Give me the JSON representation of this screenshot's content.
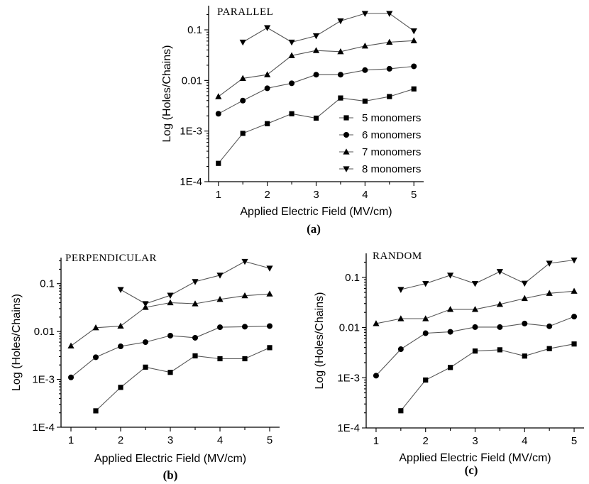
{
  "chart_data": [
    {
      "panel": "a",
      "type": "line",
      "title": "PARALLEL",
      "caption": "(a)",
      "xlabel": "Applied Electric Field (MV/cm)",
      "ylabel": "Log (Holes/Chains)",
      "yscale": "log",
      "xlim": [
        0.8,
        5.2
      ],
      "ylim": [
        0.0001,
        0.3
      ],
      "xticks": [
        1,
        1.5,
        2,
        2.5,
        3,
        3.5,
        4,
        4.5,
        5
      ],
      "xtick_labels": [
        "1",
        "",
        "2",
        "",
        "3",
        "",
        "4",
        "",
        "5"
      ],
      "yticks": [
        0.0001,
        0.001,
        0.01,
        0.1
      ],
      "ytick_labels": [
        "1E-4",
        "1E-3",
        "0.01",
        "0.1"
      ],
      "legend": "bottom-right",
      "series": [
        {
          "name": "5 monomers",
          "marker": "square",
          "x": [
            1,
            1.5,
            2,
            2.5,
            3,
            3.5,
            4,
            4.5,
            5
          ],
          "values": [
            0.00023,
            0.0009,
            0.0014,
            0.0022,
            0.0018,
            0.0045,
            0.0039,
            0.0048,
            0.0068
          ]
        },
        {
          "name": "6 monomers",
          "marker": "circle",
          "x": [
            1,
            1.5,
            2,
            2.5,
            3,
            3.5,
            4,
            4.5,
            5
          ],
          "values": [
            0.0022,
            0.004,
            0.007,
            0.0088,
            0.013,
            0.013,
            0.016,
            0.017,
            0.019
          ]
        },
        {
          "name": "7 monomers",
          "marker": "triangle-up",
          "x": [
            1,
            1.5,
            2,
            2.5,
            3,
            3.5,
            4,
            4.5,
            5
          ],
          "values": [
            0.0048,
            0.011,
            0.013,
            0.031,
            0.039,
            0.037,
            0.048,
            0.057,
            0.061
          ]
        },
        {
          "name": "8 monomers",
          "marker": "triangle-down",
          "x": [
            1.5,
            2,
            2.5,
            3,
            3.5,
            4,
            4.5,
            5
          ],
          "values": [
            0.057,
            0.11,
            0.057,
            0.076,
            0.15,
            0.21,
            0.21,
            0.095
          ]
        }
      ]
    },
    {
      "panel": "b",
      "type": "line",
      "title": "PERPENDICULAR",
      "caption": "(b)",
      "xlabel": "Applied Electric Field (MV/cm)",
      "ylabel": "Log (Holes/Chains)",
      "yscale": "log",
      "xlim": [
        0.8,
        5.2
      ],
      "ylim": [
        0.0001,
        0.35
      ],
      "xticks": [
        1,
        1.5,
        2,
        2.5,
        3,
        3.5,
        4,
        4.5,
        5
      ],
      "xtick_labels": [
        "1",
        "",
        "2",
        "",
        "3",
        "",
        "4",
        "",
        "5"
      ],
      "yticks": [
        0.0001,
        0.001,
        0.01,
        0.1
      ],
      "ytick_labels": [
        "1E-4",
        "1E-3",
        "0.01",
        "0.1"
      ],
      "series": [
        {
          "marker": "square",
          "x": [
            1.5,
            2,
            2.5,
            3,
            3.5,
            4,
            4.5,
            5
          ],
          "values": [
            0.00022,
            0.00068,
            0.0018,
            0.0014,
            0.0031,
            0.0027,
            0.0027,
            0.0046
          ]
        },
        {
          "marker": "circle",
          "x": [
            1,
            1.5,
            2,
            2.5,
            3,
            3.5,
            4,
            4.5,
            5
          ],
          "values": [
            0.0011,
            0.0029,
            0.0049,
            0.006,
            0.0082,
            0.0074,
            0.0123,
            0.0126,
            0.013
          ]
        },
        {
          "marker": "triangle-up",
          "x": [
            1,
            1.5,
            2,
            2.5,
            3,
            3.5,
            4,
            4.5,
            5
          ],
          "values": [
            0.005,
            0.012,
            0.013,
            0.032,
            0.04,
            0.038,
            0.047,
            0.056,
            0.061
          ]
        },
        {
          "marker": "triangle-down",
          "x": [
            2,
            2.5,
            3,
            3.5,
            4,
            4.5,
            5
          ],
          "values": [
            0.075,
            0.038,
            0.057,
            0.11,
            0.15,
            0.29,
            0.21
          ]
        }
      ]
    },
    {
      "panel": "c",
      "type": "line",
      "title": "RANDOM",
      "caption": "(c)",
      "xlabel": "Applied Electric Field (MV/cm)",
      "ylabel": "Log (Holes/Chains)",
      "yscale": "log",
      "xlim": [
        0.8,
        5.2
      ],
      "ylim": [
        0.0001,
        0.3
      ],
      "xticks": [
        1,
        1.5,
        2,
        2.5,
        3,
        3.5,
        4,
        4.5,
        5
      ],
      "xtick_labels": [
        "1",
        "",
        "2",
        "",
        "3",
        "",
        "4",
        "",
        "5"
      ],
      "yticks": [
        0.0001,
        0.001,
        0.01,
        0.1
      ],
      "ytick_labels": [
        "1E-4",
        "1E-3",
        "0.01",
        "0.1"
      ],
      "series": [
        {
          "marker": "square",
          "x": [
            1.5,
            2,
            2.5,
            3,
            3.5,
            4,
            4.5,
            5
          ],
          "values": [
            0.00022,
            0.0009,
            0.0016,
            0.0034,
            0.0036,
            0.0027,
            0.0038,
            0.0047
          ]
        },
        {
          "marker": "circle",
          "x": [
            1,
            1.5,
            2,
            2.5,
            3,
            3.5,
            4,
            4.5,
            5
          ],
          "values": [
            0.0011,
            0.0037,
            0.0077,
            0.0082,
            0.0102,
            0.0102,
            0.012,
            0.0106,
            0.0165
          ]
        },
        {
          "marker": "triangle-up",
          "x": [
            1,
            1.5,
            2,
            2.5,
            3,
            3.5,
            4,
            4.5,
            5
          ],
          "values": [
            0.012,
            0.015,
            0.015,
            0.023,
            0.023,
            0.029,
            0.038,
            0.048,
            0.053
          ]
        },
        {
          "marker": "triangle-down",
          "x": [
            1.5,
            2,
            2.5,
            3,
            3.5,
            4,
            4.5,
            5
          ],
          "values": [
            0.057,
            0.075,
            0.11,
            0.075,
            0.13,
            0.076,
            0.19,
            0.22
          ]
        }
      ]
    }
  ]
}
